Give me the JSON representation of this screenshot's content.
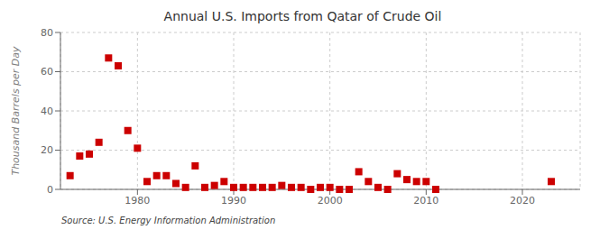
{
  "chart_data": {
    "type": "scatter",
    "title": "Annual U.S. Imports from Qatar of Crude Oil",
    "ylabel": "Thousand Barrels per Day",
    "annotation": "Source: U.S. Energy Information Administration",
    "color": "#cc0000",
    "marker": "square",
    "xlim": [
      1972,
      2026
    ],
    "ylim": [
      0,
      80
    ],
    "xticks": [
      1980,
      1990,
      2000,
      2010,
      2020
    ],
    "yticks": [
      0,
      20,
      40,
      60,
      80
    ],
    "grid": true,
    "x": [
      1973,
      1974,
      1975,
      1976,
      1977,
      1978,
      1979,
      1980,
      1981,
      1982,
      1983,
      1984,
      1985,
      1986,
      1987,
      1988,
      1989,
      1990,
      1991,
      1992,
      1993,
      1994,
      1995,
      1996,
      1997,
      1998,
      1999,
      2000,
      2001,
      2002,
      2003,
      2004,
      2005,
      2006,
      2007,
      2008,
      2009,
      2010,
      2011,
      2023
    ],
    "values": [
      7,
      17,
      18,
      24,
      67,
      63,
      30,
      21,
      4,
      7,
      7,
      3,
      1,
      12,
      1,
      2,
      4,
      1,
      1,
      1,
      1,
      1,
      2,
      1,
      1,
      0,
      1,
      1,
      0,
      0,
      9,
      4,
      1,
      0,
      8,
      5,
      4,
      4,
      0,
      4
    ]
  }
}
